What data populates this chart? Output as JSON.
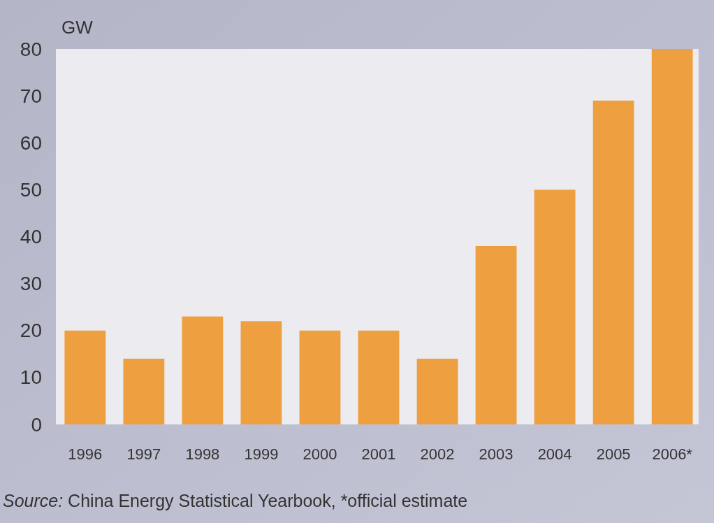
{
  "chart_data": {
    "type": "bar",
    "ylabel": "GW",
    "categories": [
      "1996",
      "1997",
      "1998",
      "1999",
      "2000",
      "2001",
      "2002",
      "2003",
      "2004",
      "2005",
      "2006*"
    ],
    "values": [
      20,
      14,
      23,
      22,
      20,
      20,
      14,
      38,
      50,
      69,
      80
    ],
    "color": "#eea040",
    "ylim": [
      0,
      80
    ],
    "yticks": [
      0,
      10,
      20,
      30,
      40,
      50,
      60,
      70,
      80
    ],
    "grid": false,
    "annotations": [
      "Source: China Energy Statistical Yearbook, *official estimate"
    ]
  }
}
